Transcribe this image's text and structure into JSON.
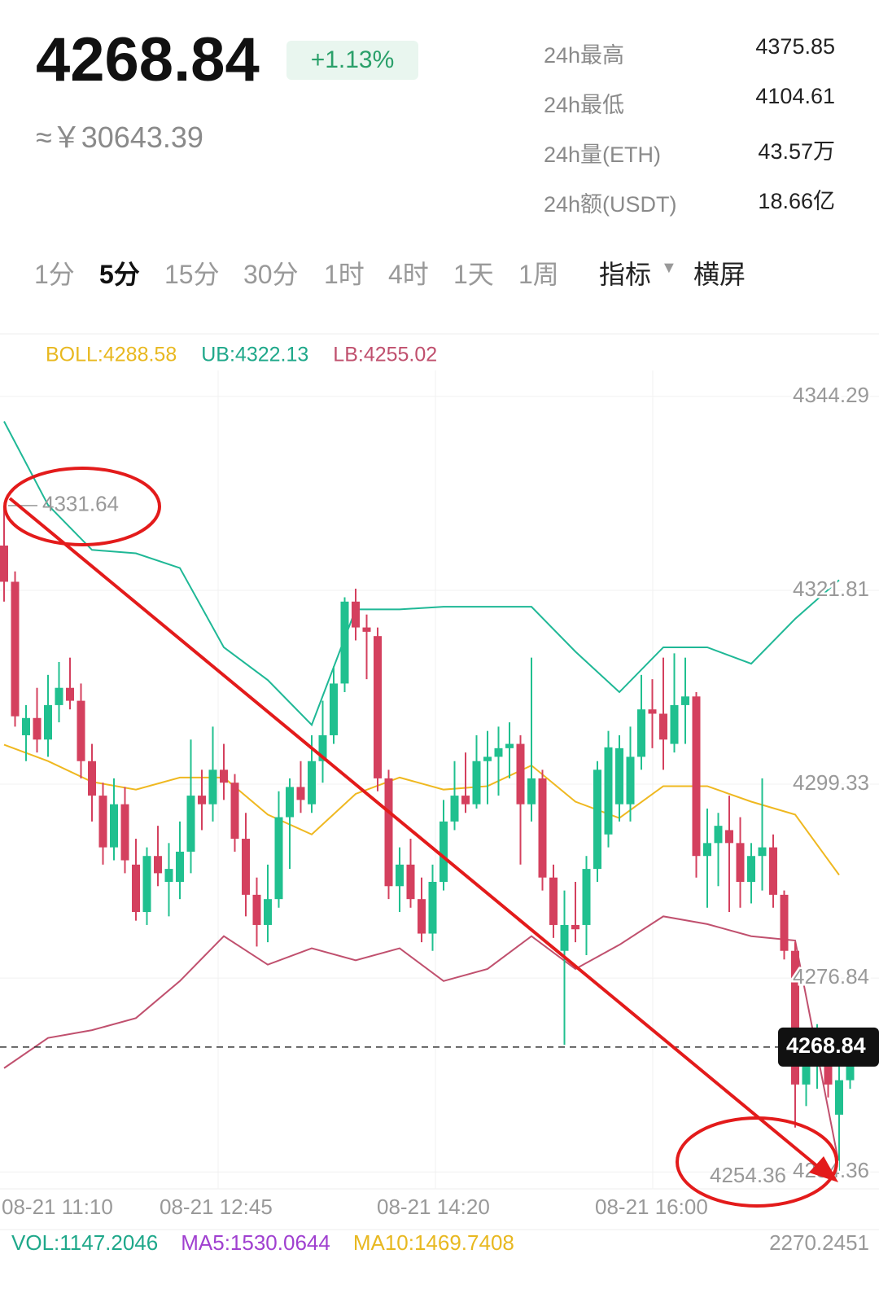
{
  "header": {
    "price": "4268.84",
    "change": "+1.13%",
    "cny": "≈￥30643.39"
  },
  "stats": [
    {
      "label": "24h最高",
      "value": "4375.85"
    },
    {
      "label": "24h最低",
      "value": "4104.61"
    },
    {
      "label": "24h量(ETH)",
      "value": "43.57万"
    },
    {
      "label": "24h额(USDT)",
      "value": "18.66亿"
    }
  ],
  "tabs": [
    "1分",
    "5分",
    "15分",
    "30分",
    "1时",
    "4时",
    "1天",
    "1周"
  ],
  "active_tab": 1,
  "tools": [
    "指标",
    "横屏"
  ],
  "chart": {
    "type": "candlestick",
    "indicators": [
      {
        "text": "BOLL:4288.58",
        "color": "#e8b820"
      },
      {
        "text": "UB:4322.13",
        "color": "#1fa88a"
      },
      {
        "text": "LB:4255.02",
        "color": "#c0506e"
      }
    ],
    "up_color": "#20c08f",
    "down_color": "#d4405e",
    "ylim": [
      4252.4,
      4347.3
    ],
    "yticks": [
      4344.29,
      4321.81,
      4299.33,
      4276.84,
      4254.36
    ],
    "last_price": 4268.84,
    "high_marker": 4331.64,
    "low_marker": 4254.36,
    "xlabels": [
      "08-21 11:10",
      "08-21 12:45",
      "08-21 14:20",
      "08-21 16:00"
    ],
    "ohlc": [
      [
        4327.0,
        4331.6,
        4320.5,
        4322.8
      ],
      [
        4322.8,
        4324.0,
        4306.0,
        4307.2
      ],
      [
        4305.0,
        4308.5,
        4302.0,
        4307.0
      ],
      [
        4307.0,
        4310.5,
        4303.0,
        4304.5
      ],
      [
        4304.5,
        4312.0,
        4302.5,
        4308.5
      ],
      [
        4308.5,
        4313.5,
        4306.5,
        4310.5
      ],
      [
        4310.5,
        4314.0,
        4308.0,
        4309.0
      ],
      [
        4309.0,
        4311.0,
        4300.0,
        4302.0
      ],
      [
        4302.0,
        4304.0,
        4295.0,
        4298.0
      ],
      [
        4298.0,
        4299.5,
        4290.0,
        4292.0
      ],
      [
        4292.0,
        4300.0,
        4290.5,
        4297.0
      ],
      [
        4297.0,
        4299.0,
        4289.0,
        4290.5
      ],
      [
        4290.0,
        4293.0,
        4283.5,
        4284.5
      ],
      [
        4284.5,
        4292.0,
        4283.0,
        4291.0
      ],
      [
        4291.0,
        4294.5,
        4287.5,
        4289.0
      ],
      [
        4288.0,
        4292.5,
        4284.0,
        4289.5
      ],
      [
        4288.0,
        4295.0,
        4286.0,
        4291.5
      ],
      [
        4291.5,
        4304.5,
        4289.0,
        4298.0
      ],
      [
        4298.0,
        4301.0,
        4294.0,
        4297.0
      ],
      [
        4297.0,
        4306.0,
        4295.0,
        4301.0
      ],
      [
        4301.0,
        4304.0,
        4297.5,
        4299.5
      ],
      [
        4299.5,
        4300.5,
        4291.5,
        4293.0
      ],
      [
        4293.0,
        4296.0,
        4284.0,
        4286.5
      ],
      [
        4286.5,
        4288.5,
        4280.5,
        4283.0
      ],
      [
        4283.0,
        4290.0,
        4281.0,
        4286.0
      ],
      [
        4286.0,
        4298.5,
        4285.0,
        4295.5
      ],
      [
        4295.5,
        4300.0,
        4289.5,
        4299.0
      ],
      [
        4299.0,
        4302.0,
        4296.0,
        4297.5
      ],
      [
        4297.0,
        4305.0,
        4296.0,
        4302.0
      ],
      [
        4302.0,
        4309.0,
        4299.5,
        4305.0
      ],
      [
        4305.0,
        4313.0,
        4304.0,
        4311.0
      ],
      [
        4311.0,
        4321.0,
        4310.0,
        4320.5
      ],
      [
        4320.5,
        4322.0,
        4316.0,
        4317.5
      ],
      [
        4317.5,
        4319.0,
        4311.5,
        4317.0
      ],
      [
        4316.5,
        4317.5,
        4298.5,
        4300.0
      ],
      [
        4300.0,
        4301.0,
        4286.0,
        4287.5
      ],
      [
        4287.5,
        4292.0,
        4284.5,
        4290.0
      ],
      [
        4290.0,
        4293.0,
        4285.0,
        4286.0
      ],
      [
        4286.0,
        4288.5,
        4281.0,
        4282.0
      ],
      [
        4282.0,
        4290.0,
        4280.0,
        4288.0
      ],
      [
        4288.0,
        4297.5,
        4287.0,
        4295.0
      ],
      [
        4295.0,
        4302.0,
        4294.0,
        4298.0
      ],
      [
        4298.0,
        4303.0,
        4296.0,
        4297.0
      ],
      [
        4297.0,
        4305.0,
        4296.5,
        4302.0
      ],
      [
        4302.0,
        4305.5,
        4297.0,
        4302.5
      ],
      [
        4302.5,
        4306.0,
        4298.0,
        4303.5
      ],
      [
        4303.5,
        4306.5,
        4300.0,
        4304.0
      ],
      [
        4304.0,
        4305.0,
        4290.0,
        4297.0
      ],
      [
        4297.0,
        4314.0,
        4295.0,
        4300.0
      ],
      [
        4300.0,
        4301.0,
        4287.0,
        4288.5
      ],
      [
        4288.5,
        4290.0,
        4281.5,
        4283.0
      ],
      [
        4280.0,
        4287.0,
        4269.1,
        4283.0
      ],
      [
        4283.0,
        4288.0,
        4281.0,
        4282.5
      ],
      [
        4283.0,
        4291.0,
        4279.5,
        4289.5
      ],
      [
        4289.5,
        4302.0,
        4288.0,
        4301.0
      ],
      [
        4293.5,
        4305.5,
        4292.0,
        4303.6
      ],
      [
        4297.0,
        4305.0,
        4295.0,
        4303.5
      ],
      [
        4297.0,
        4306.0,
        4295.0,
        4302.5
      ],
      [
        4302.5,
        4312.0,
        4301.0,
        4308.0
      ],
      [
        4308.0,
        4311.5,
        4303.5,
        4307.5
      ],
      [
        4307.5,
        4314.0,
        4301.0,
        4304.5
      ],
      [
        4304.0,
        4314.5,
        4303.0,
        4308.5
      ],
      [
        4308.5,
        4314.0,
        4304.0,
        4309.5
      ],
      [
        4309.5,
        4310.0,
        4288.5,
        4291.0
      ],
      [
        4291.0,
        4296.5,
        4285.0,
        4292.5
      ],
      [
        4292.5,
        4296.0,
        4287.5,
        4294.5
      ],
      [
        4294.0,
        4298.0,
        4284.5,
        4292.5
      ],
      [
        4292.5,
        4295.5,
        4285.0,
        4288.0
      ],
      [
        4288.0,
        4292.5,
        4285.5,
        4291.0
      ],
      [
        4291.0,
        4300.0,
        4287.0,
        4292.0
      ],
      [
        4292.0,
        4293.5,
        4285.0,
        4286.5
      ],
      [
        4286.5,
        4287.0,
        4279.0,
        4280.0
      ],
      [
        4280.0,
        4281.0,
        4259.5,
        4264.5
      ],
      [
        4264.5,
        4270.0,
        4262.0,
        4267.0
      ],
      [
        4267.0,
        4271.5,
        4264.0,
        4268.5
      ],
      [
        4268.5,
        4270.0,
        4263.0,
        4264.5
      ],
      [
        4261.0,
        4267.0,
        4254.4,
        4265.0
      ],
      [
        4265.0,
        4270.5,
        4264.0,
        4268.84
      ]
    ],
    "boll": {
      "x": [
        0,
        4,
        8,
        12,
        16,
        20,
        24,
        28,
        32,
        36,
        40,
        44,
        48,
        52,
        56,
        60,
        64,
        68,
        72,
        76
      ],
      "series": [
        {
          "color": "#1fb896",
          "values": [
            4341.4,
            4331.7,
            4326.5,
            4326.1,
            4324.4,
            4315.2,
            4311.4,
            4306.2,
            4319.6,
            4319.6,
            4319.9,
            4319.9,
            4319.9,
            4314.7,
            4310.0,
            4315.2,
            4315.2,
            4313.3,
            4318.5,
            4323.0
          ]
        },
        {
          "color": "#efb820",
          "values": [
            4303.9,
            4302.0,
            4299.6,
            4298.7,
            4300.1,
            4300.1,
            4295.8,
            4293.5,
            4298.2,
            4300.1,
            4298.7,
            4299.1,
            4301.5,
            4297.3,
            4295.4,
            4299.1,
            4299.1,
            4297.3,
            4295.8,
            4288.8
          ]
        },
        {
          "color": "#c0506e",
          "values": [
            4266.4,
            4269.9,
            4270.8,
            4272.2,
            4276.5,
            4281.7,
            4278.4,
            4280.3,
            4278.9,
            4280.3,
            4276.5,
            4277.9,
            4281.7,
            4277.9,
            4280.7,
            4284.0,
            4283.1,
            4281.7,
            4281.2,
            4255.2
          ]
        }
      ]
    },
    "volume": {
      "items": [
        {
          "text": "VOL:1147.2046",
          "color": "#1fa88a"
        },
        {
          "text": "MA5:1530.0644",
          "color": "#a040d0"
        },
        {
          "text": "MA10:1469.7408",
          "color": "#e8b820"
        }
      ],
      "max": "2270.2451"
    }
  }
}
